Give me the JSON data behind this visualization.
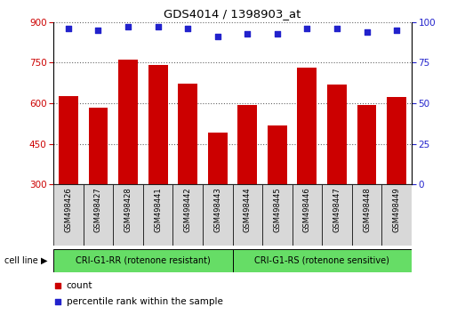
{
  "title": "GDS4014 / 1398903_at",
  "samples": [
    "GSM498426",
    "GSM498427",
    "GSM498428",
    "GSM498441",
    "GSM498442",
    "GSM498443",
    "GSM498444",
    "GSM498445",
    "GSM498446",
    "GSM498447",
    "GSM498448",
    "GSM498449"
  ],
  "counts": [
    625,
    583,
    762,
    740,
    673,
    490,
    592,
    516,
    732,
    668,
    592,
    622
  ],
  "percentile_ranks": [
    96,
    95,
    97,
    97,
    96,
    91,
    93,
    93,
    96,
    96,
    94,
    95
  ],
  "bar_color": "#cc0000",
  "dot_color": "#2222cc",
  "ylim_left": [
    300,
    900
  ],
  "ylim_right": [
    0,
    100
  ],
  "yticks_left": [
    300,
    450,
    600,
    750,
    900
  ],
  "yticks_right": [
    0,
    25,
    50,
    75,
    100
  ],
  "groups": [
    {
      "label": "CRI-G1-RR (rotenone resistant)",
      "start": 0,
      "end": 6
    },
    {
      "label": "CRI-G1-RS (rotenone sensitive)",
      "start": 6,
      "end": 12
    }
  ],
  "group_color": "#66dd66",
  "xlabel_cellline": "cell line",
  "legend_count_label": "count",
  "legend_pct_label": "percentile rank within the sample",
  "grid_color": "#666666",
  "tick_label_color_left": "#cc0000",
  "tick_label_color_right": "#2222cc",
  "plot_bg_color": "#ffffff",
  "cell_bg_color": "#d8d8d8"
}
